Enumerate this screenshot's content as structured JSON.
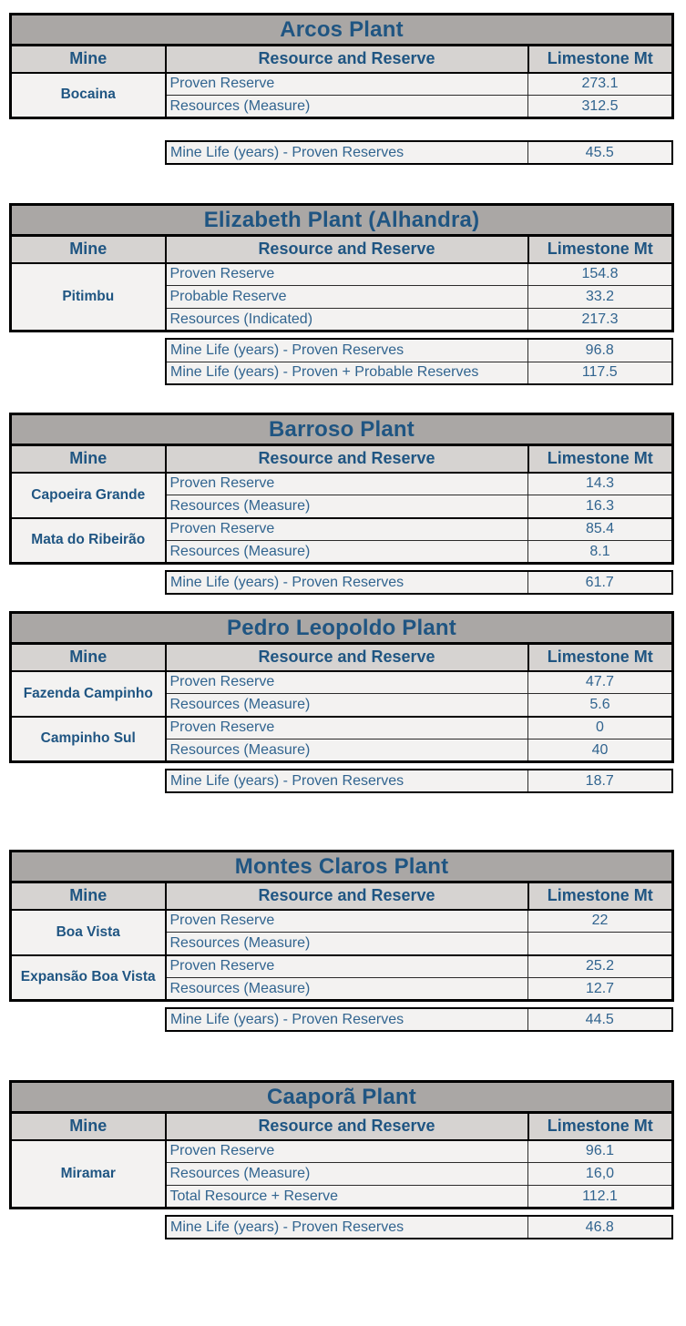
{
  "colors": {
    "title_bar_bg": "#aaa7a5",
    "header_row_bg": "#d6d3d1",
    "body_row_bg": "#f3f2f1",
    "bold_text_blue": "#1f5582",
    "body_text_blue": "#31648f",
    "border": "#000000"
  },
  "column_headers": {
    "mine": "Mine",
    "resource": "Resource and Reserve",
    "limestone": "Limestone Mt"
  },
  "plants": [
    {
      "title": "Arcos Plant",
      "mines": [
        {
          "name": "Bocaina",
          "rows": [
            {
              "label": "Proven Reserve",
              "value": "273.1"
            },
            {
              "label": "Resources (Measure)",
              "value": "312.5"
            }
          ]
        }
      ],
      "mine_life": [
        {
          "label": "Mine Life (years) - Proven Reserves",
          "value": "45.5"
        }
      ]
    },
    {
      "title": "Elizabeth Plant (Alhandra)",
      "mines": [
        {
          "name": "Pitimbu",
          "rows": [
            {
              "label": "Proven Reserve",
              "value": "154.8"
            },
            {
              "label": "Probable Reserve",
              "value": "33.2"
            },
            {
              "label": "Resources (Indicated)",
              "value": "217.3"
            }
          ]
        }
      ],
      "mine_life": [
        {
          "label": "Mine Life (years) - Proven Reserves",
          "value": "96.8"
        },
        {
          "label": "Mine Life (years) - Proven + Probable Reserves",
          "value": "117.5"
        }
      ]
    },
    {
      "title": "Barroso Plant",
      "mines": [
        {
          "name": "Capoeira Grande",
          "rows": [
            {
              "label": "Proven Reserve",
              "value": "14.3"
            },
            {
              "label": "Resources (Measure)",
              "value": "16.3"
            }
          ]
        },
        {
          "name": "Mata do Ribeirão",
          "rows": [
            {
              "label": "Proven Reserve",
              "value": "85.4"
            },
            {
              "label": "Resources (Measure)",
              "value": "8.1"
            }
          ]
        }
      ],
      "mine_life": [
        {
          "label": "Mine Life (years) - Proven Reserves",
          "value": "61.7"
        }
      ]
    },
    {
      "title": "Pedro Leopoldo Plant",
      "mines": [
        {
          "name": "Fazenda Campinho",
          "rows": [
            {
              "label": "Proven Reserve",
              "value": "47.7"
            },
            {
              "label": "Resources (Measure)",
              "value": "5.6"
            }
          ]
        },
        {
          "name": "Campinho Sul",
          "rows": [
            {
              "label": "Proven Reserve",
              "value": "0"
            },
            {
              "label": "Resources (Measure)",
              "value": "40"
            }
          ]
        }
      ],
      "mine_life": [
        {
          "label": "Mine Life (years) - Proven Reserves",
          "value": "18.7"
        }
      ]
    },
    {
      "title": "Montes Claros Plant",
      "mines": [
        {
          "name": "Boa Vista",
          "rows": [
            {
              "label": "Proven Reserve",
              "value": "22"
            },
            {
              "label": "Resources (Measure)",
              "value": ""
            }
          ]
        },
        {
          "name": "Expansão Boa Vista",
          "rows": [
            {
              "label": "Proven Reserve",
              "value": "25.2"
            },
            {
              "label": "Resources (Measure)",
              "value": "12.7"
            }
          ]
        }
      ],
      "mine_life": [
        {
          "label": "Mine Life (years) - Proven Reserves",
          "value": "44.5"
        }
      ]
    },
    {
      "title": "Caaporã Plant",
      "mines": [
        {
          "name": "Miramar",
          "rows": [
            {
              "label": "Proven Reserve",
              "value": "96.1"
            },
            {
              "label": "Resources (Measure)",
              "value": "16,0"
            },
            {
              "label": "Total Resource + Reserve",
              "value": "112.1"
            }
          ]
        }
      ],
      "mine_life": [
        {
          "label": "Mine Life (years) - Proven Reserves",
          "value": "46.8"
        }
      ]
    }
  ]
}
